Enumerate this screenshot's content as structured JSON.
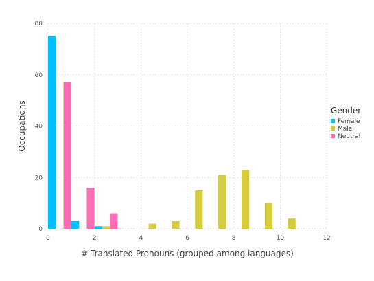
{
  "chart_data": {
    "type": "bar",
    "xlabel": "# Translated Pronouns (grouped among languages)",
    "ylabel": "Occupations",
    "xlim": [
      0,
      12
    ],
    "ylim": [
      0,
      80
    ],
    "xticks": [
      "0",
      "2",
      "4",
      "6",
      "8",
      "10",
      "12"
    ],
    "yticks": [
      "0",
      "20",
      "40",
      "60",
      "80"
    ],
    "grid": true,
    "legend": {
      "title": "Gender",
      "placement": "right",
      "entries": [
        "Female",
        "Male",
        "Neutral"
      ]
    },
    "series": [
      {
        "name": "Female",
        "color": "#00BFFF",
        "points": [
          {
            "x": 0,
            "y": 75
          },
          {
            "x": 1,
            "y": 3
          },
          {
            "x": 2,
            "y": 1
          }
        ]
      },
      {
        "name": "Male",
        "color": "#D4CC3C",
        "points": [
          {
            "x": 2,
            "y": 1
          },
          {
            "x": 4,
            "y": 2
          },
          {
            "x": 5,
            "y": 3
          },
          {
            "x": 6,
            "y": 15
          },
          {
            "x": 7,
            "y": 21
          },
          {
            "x": 8,
            "y": 23
          },
          {
            "x": 9,
            "y": 10
          },
          {
            "x": 10,
            "y": 4
          }
        ]
      },
      {
        "name": "Neutral",
        "color": "#FF6EB4",
        "points": [
          {
            "x": 0,
            "y": 57
          },
          {
            "x": 1,
            "y": 16
          },
          {
            "x": 2,
            "y": 6
          }
        ]
      }
    ]
  }
}
